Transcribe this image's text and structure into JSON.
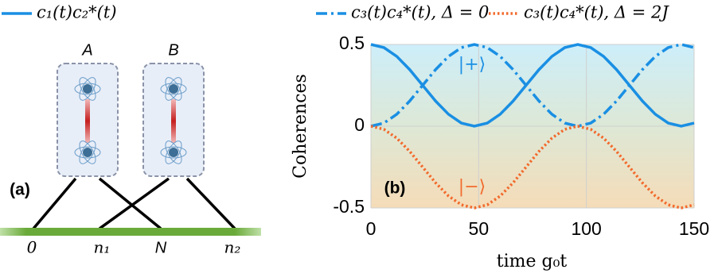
{
  "panel_a": {
    "label": "(a)",
    "atoms": [
      "A",
      "B"
    ],
    "sites": [
      "0",
      "n₁",
      "N",
      "n₂"
    ]
  },
  "chart_data": {
    "type": "line",
    "x": [
      0,
      6,
      12,
      18,
      24,
      30,
      36,
      42,
      48,
      54,
      60,
      66,
      72,
      78,
      84,
      90,
      96,
      102,
      108,
      114,
      120,
      126,
      132,
      138,
      144,
      150
    ],
    "series": [
      {
        "name": "c₁(t)c₂*(t)",
        "color": "#1a8fe3",
        "linestyle": "solid",
        "values": [
          0.5,
          0.481,
          0.427,
          0.346,
          0.25,
          0.154,
          0.073,
          0.019,
          0,
          0.019,
          0.073,
          0.154,
          0.25,
          0.346,
          0.427,
          0.481,
          0.5,
          0.481,
          0.427,
          0.346,
          0.25,
          0.154,
          0.073,
          0.019,
          0,
          0.019
        ]
      },
      {
        "name": "c₃(t)c₄*(t), Δ = 0",
        "color": "#1a8fe3",
        "linestyle": "dashdot",
        "values": [
          0,
          0.019,
          0.073,
          0.154,
          0.25,
          0.346,
          0.427,
          0.481,
          0.5,
          0.481,
          0.427,
          0.346,
          0.25,
          0.154,
          0.073,
          0.019,
          0,
          0.019,
          0.073,
          0.154,
          0.25,
          0.346,
          0.427,
          0.481,
          0.5,
          0.481
        ]
      },
      {
        "name": "c₃(t)c₄*(t), Δ = 2J",
        "color": "#f26a2c",
        "linestyle": "dotted",
        "values": [
          0,
          -0.019,
          -0.073,
          -0.154,
          -0.25,
          -0.346,
          -0.427,
          -0.481,
          -0.5,
          -0.481,
          -0.427,
          -0.346,
          -0.25,
          -0.154,
          -0.073,
          -0.019,
          0,
          -0.019,
          -0.073,
          -0.154,
          -0.25,
          -0.346,
          -0.427,
          -0.481,
          -0.5,
          -0.481
        ]
      }
    ],
    "xlim": [
      0,
      150
    ],
    "ylim": [
      -0.5,
      0.5
    ],
    "xticks": [
      0,
      50,
      100,
      150
    ],
    "yticks": [
      -0.5,
      0,
      0.5
    ],
    "xlabel": "time g₀t",
    "ylabel": "Coherences",
    "grid": true,
    "annotations": [
      "(b)",
      "|+⟩",
      "|−⟩"
    ]
  }
}
